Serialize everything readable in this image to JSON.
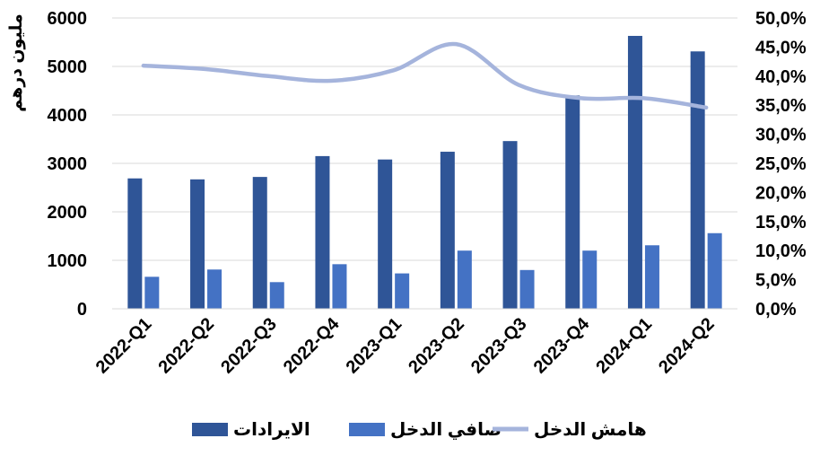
{
  "chart_data": {
    "type": "bar",
    "categories": [
      "2022-Q1",
      "2022-Q2",
      "2022-Q3",
      "2022-Q4",
      "2023-Q1",
      "2023-Q2",
      "2023-Q3",
      "2023-Q4",
      "2024-Q1",
      "2024-Q2"
    ],
    "series": [
      {
        "name": "الايرادات",
        "type": "bar",
        "axis": "left",
        "color": "#2F5597",
        "values": [
          2690,
          2670,
          2720,
          3150,
          3080,
          3240,
          3460,
          4400,
          5630,
          5310
        ]
      },
      {
        "name": "صافي الدخل",
        "type": "bar",
        "axis": "left",
        "color": "#4472C4",
        "values": [
          660,
          810,
          550,
          920,
          730,
          1200,
          800,
          1200,
          1310,
          1560
        ]
      },
      {
        "name": "هامش الدخل",
        "type": "line",
        "axis": "right",
        "smooth": true,
        "color": "#A5B4DC",
        "values": [
          0.418,
          0.412,
          0.4,
          0.392,
          0.41,
          0.455,
          0.385,
          0.362,
          0.362,
          0.346
        ]
      }
    ],
    "ylabel": "مليون درهم",
    "ylim": [
      0,
      6000
    ],
    "yticks": [
      "0",
      "1000",
      "2000",
      "3000",
      "4000",
      "5000",
      "6000"
    ],
    "y2lim": [
      0,
      0.5
    ],
    "y2ticks": [
      "0,0%",
      "5,0%",
      "10,0%",
      "15,0%",
      "20,0%",
      "25,0%",
      "30,0%",
      "35,0%",
      "40,0%",
      "45,0%",
      "50,0%"
    ],
    "grid": true,
    "legend": "bottom"
  }
}
